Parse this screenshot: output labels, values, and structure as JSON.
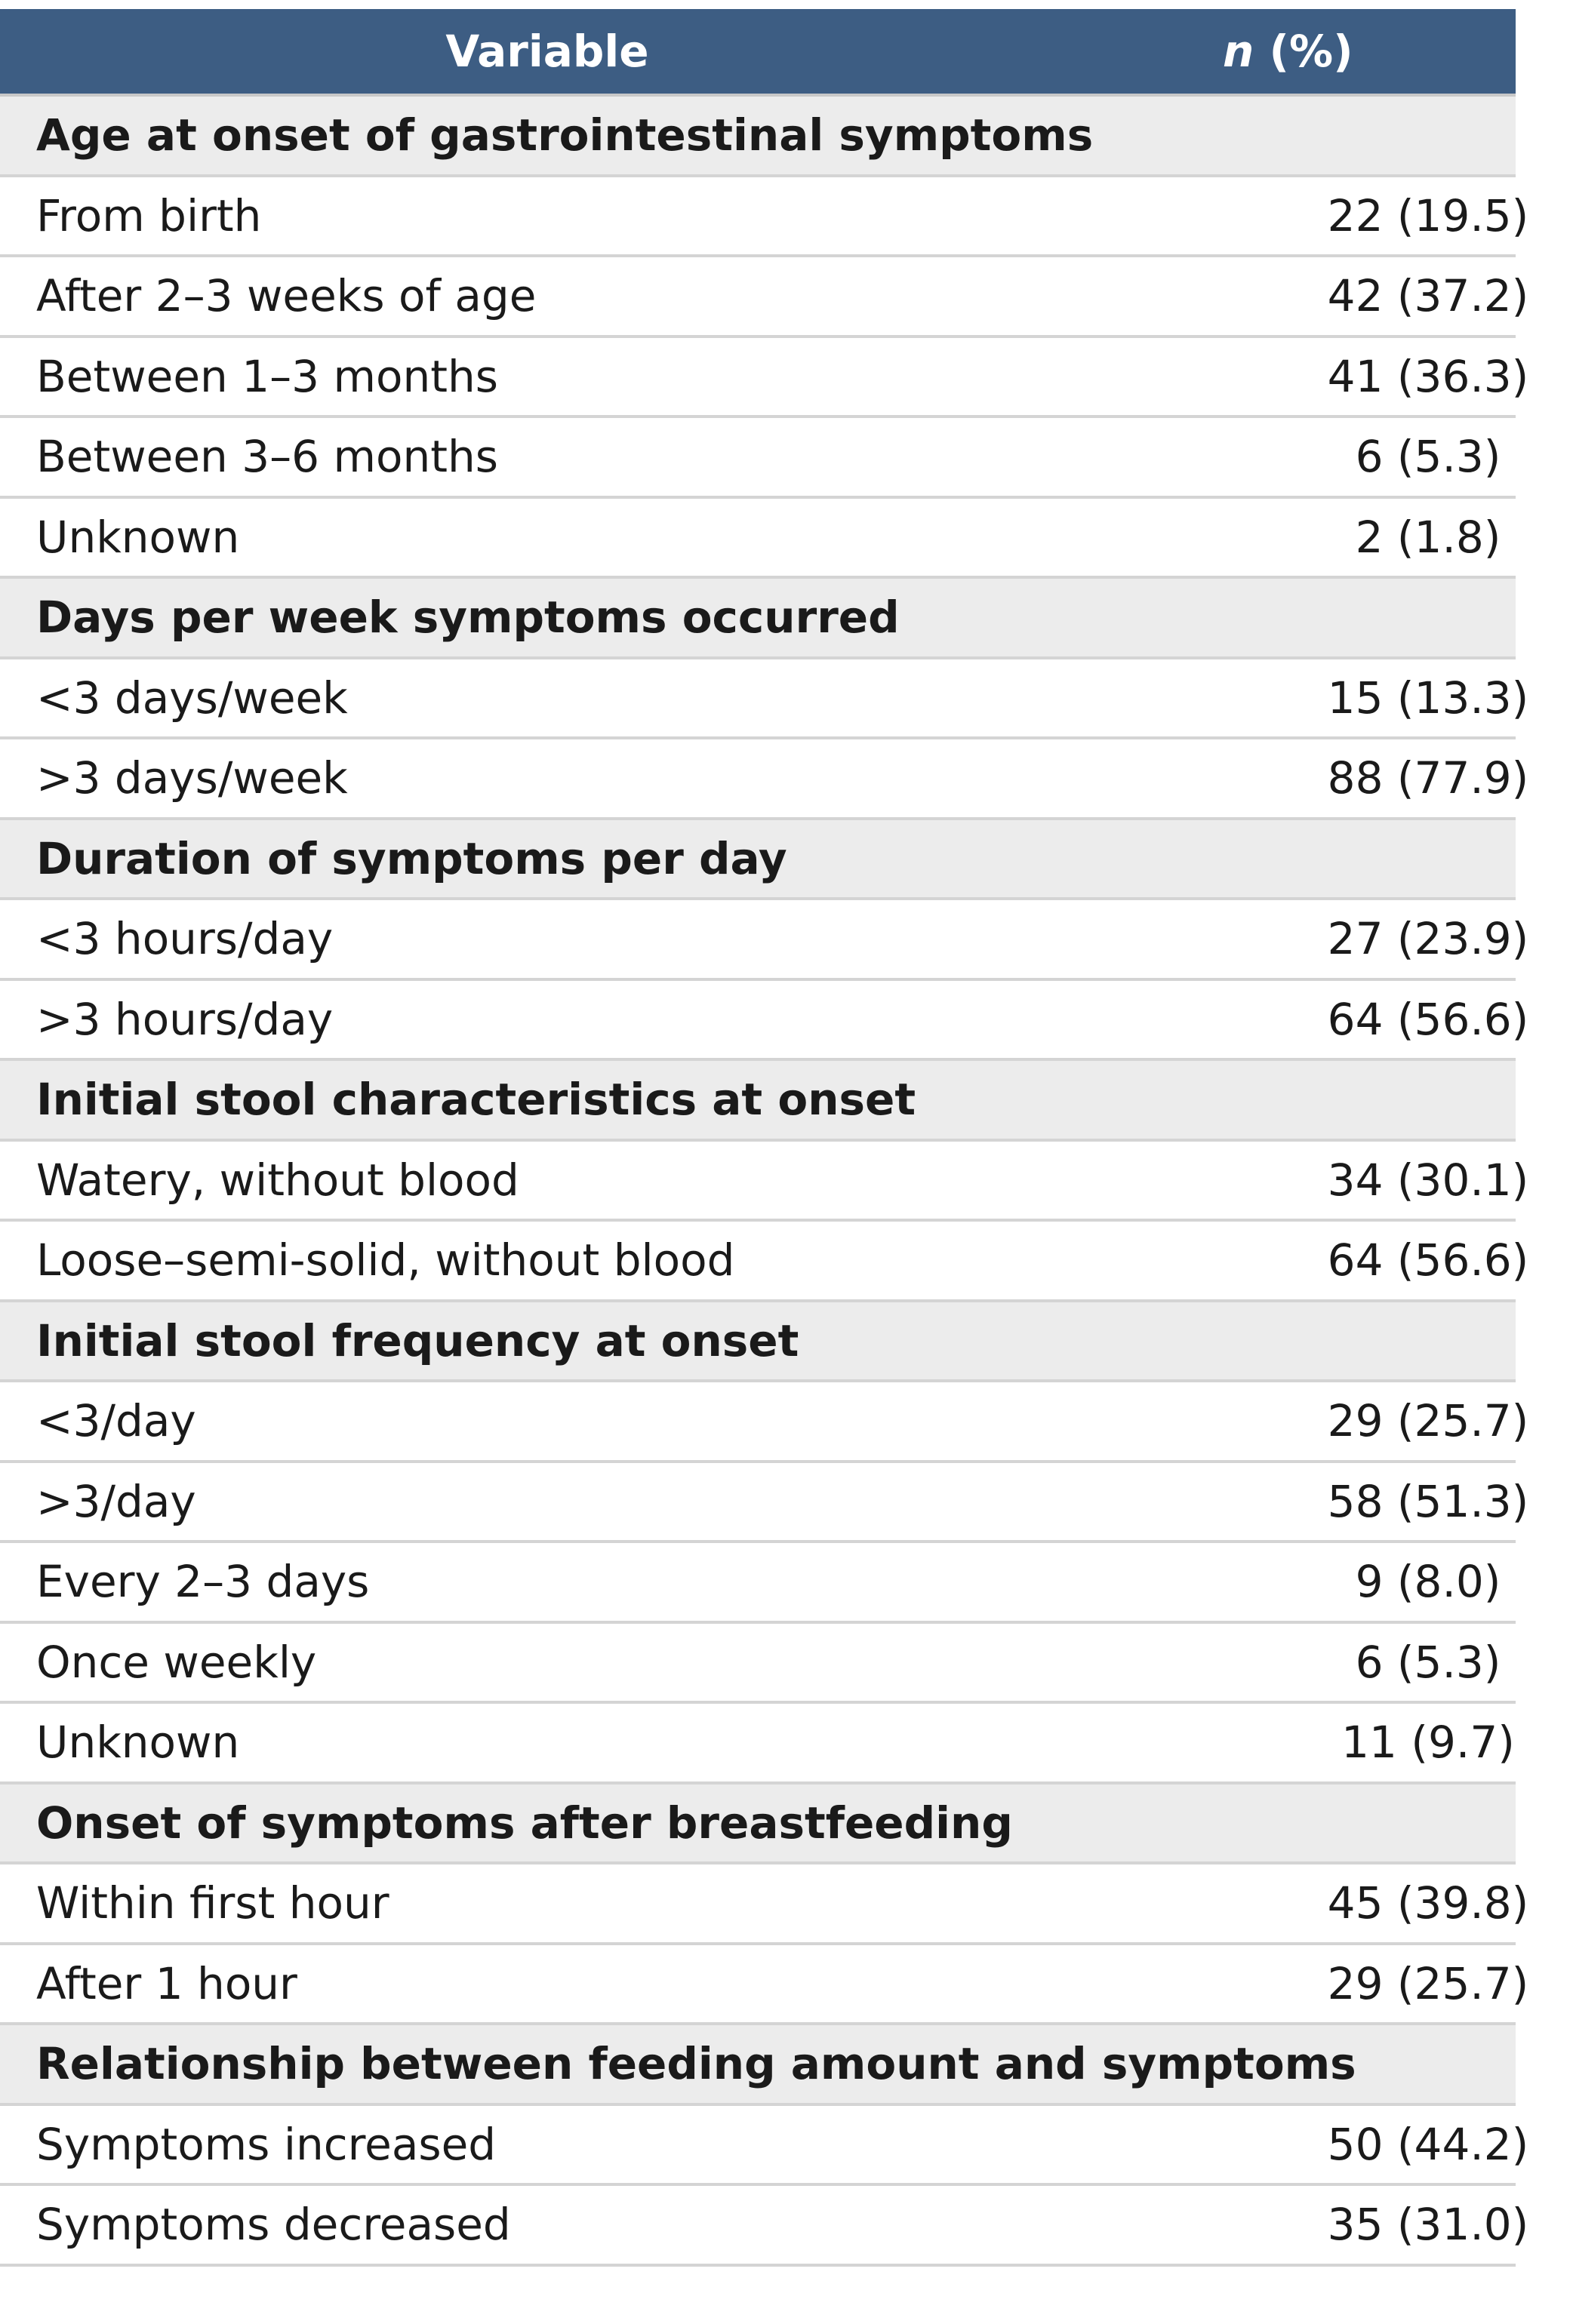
{
  "header": {
    "variable": "Variable",
    "n_italic": "n",
    "n_percent": "(%)"
  },
  "rows": [
    {
      "type": "section",
      "label": "Age at onset of gastrointestinal symptoms"
    },
    {
      "type": "item",
      "label": "From birth",
      "value": "22 (19.5)"
    },
    {
      "type": "item",
      "label": "After 2–3 weeks of age",
      "value": "42 (37.2)"
    },
    {
      "type": "item",
      "label": "Between 1–3 months",
      "value": "41 (36.3)"
    },
    {
      "type": "item",
      "label": "Between 3–6 months",
      "value": "6 (5.3)"
    },
    {
      "type": "item",
      "label": "Unknown",
      "value": "2 (1.8)"
    },
    {
      "type": "section",
      "label": "Days per week symptoms occurred"
    },
    {
      "type": "item",
      "label": "<3 days/week",
      "value": "15 (13.3)"
    },
    {
      "type": "item",
      "label": ">3 days/week",
      "value": "88 (77.9)"
    },
    {
      "type": "section",
      "label": "Duration of symptoms per day"
    },
    {
      "type": "item",
      "label": "<3 hours/day",
      "value": "27 (23.9)"
    },
    {
      "type": "item",
      "label": ">3 hours/day",
      "value": "64 (56.6)"
    },
    {
      "type": "section",
      "label": "Initial stool characteristics at onset"
    },
    {
      "type": "item",
      "label": "Watery, without blood",
      "value": "34 (30.1)"
    },
    {
      "type": "item",
      "label": "Loose–semi-solid, without blood",
      "value": "64 (56.6)"
    },
    {
      "type": "section",
      "label": "Initial stool frequency at onset"
    },
    {
      "type": "item",
      "label": "<3/day",
      "value": "29 (25.7)"
    },
    {
      "type": "item",
      "label": ">3/day",
      "value": "58 (51.3)"
    },
    {
      "type": "item",
      "label": "Every 2–3 days",
      "value": "9 (8.0)"
    },
    {
      "type": "item",
      "label": "Once weekly",
      "value": "6 (5.3)"
    },
    {
      "type": "item",
      "label": "Unknown",
      "value": "11 (9.7)"
    },
    {
      "type": "section",
      "label": "Onset of symptoms after breastfeeding"
    },
    {
      "type": "item",
      "label": "Within first hour",
      "value": "45 (39.8)"
    },
    {
      "type": "item",
      "label": "After 1 hour",
      "value": "29 (25.7)"
    },
    {
      "type": "section",
      "label": "Relationship between feeding amount and symptoms"
    },
    {
      "type": "item",
      "label": "Symptoms increased",
      "value": "50 (44.2)"
    },
    {
      "type": "item",
      "label": "Symptoms decreased",
      "value": "35 (31.0)"
    }
  ],
  "colors": {
    "header_bg": "#3d5d83",
    "section_bg": "#ececec",
    "divider": "#d4d4d4"
  }
}
